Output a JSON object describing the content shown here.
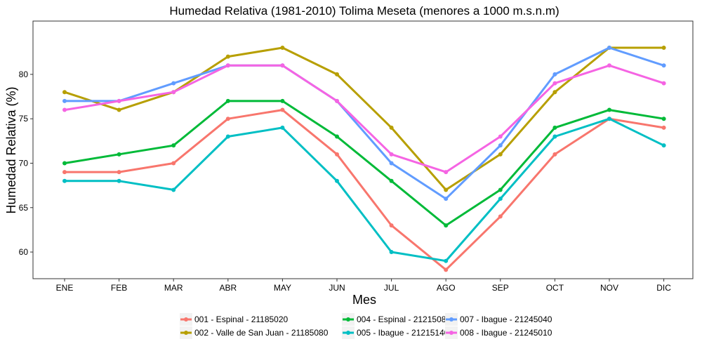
{
  "chart_data": {
    "type": "line",
    "title": "Humedad Relativa (1981-2010) Tolima Meseta (menores a 1000 m.s.n.m)",
    "xlabel": "Mes",
    "ylabel": "Humedad Relativa (%)",
    "categories": [
      "ENE",
      "FEB",
      "MAR",
      "ABR",
      "MAY",
      "JUN",
      "JUL",
      "AGO",
      "SEP",
      "OCT",
      "NOV",
      "DIC"
    ],
    "ylim": [
      57,
      86
    ],
    "yticks": [
      60,
      65,
      70,
      75,
      80
    ],
    "grid": false,
    "legend_position": "bottom",
    "series": [
      {
        "name": "001 - Espinal - 21185020",
        "color": "#F8766D",
        "values": [
          69,
          69,
          70,
          75,
          76,
          71,
          63,
          58,
          64,
          71,
          75,
          74
        ]
      },
      {
        "name": "002 - Valle de San Juan - 21185080",
        "color": "#B79F00",
        "values": [
          78,
          76,
          78,
          82,
          83,
          80,
          74,
          67,
          71,
          78,
          83,
          83
        ]
      },
      {
        "name": "004 - Espinal - 21215080",
        "color": "#00BA38",
        "values": [
          70,
          71,
          72,
          77,
          77,
          73,
          68,
          63,
          67,
          74,
          76,
          75
        ]
      },
      {
        "name": "005 - Ibague - 21215140",
        "color": "#00BFC4",
        "values": [
          68,
          68,
          67,
          73,
          74,
          68,
          60,
          59,
          66,
          73,
          75,
          72
        ]
      },
      {
        "name": "007 - Ibague - 21245040",
        "color": "#619CFF",
        "values": [
          77,
          77,
          79,
          81,
          81,
          77,
          70,
          66,
          72,
          80,
          83,
          81
        ]
      },
      {
        "name": "008 - Ibague - 21245010",
        "color": "#F564E3",
        "values": [
          76,
          77,
          78,
          81,
          81,
          77,
          71,
          69,
          73,
          79,
          81,
          79
        ]
      }
    ]
  }
}
